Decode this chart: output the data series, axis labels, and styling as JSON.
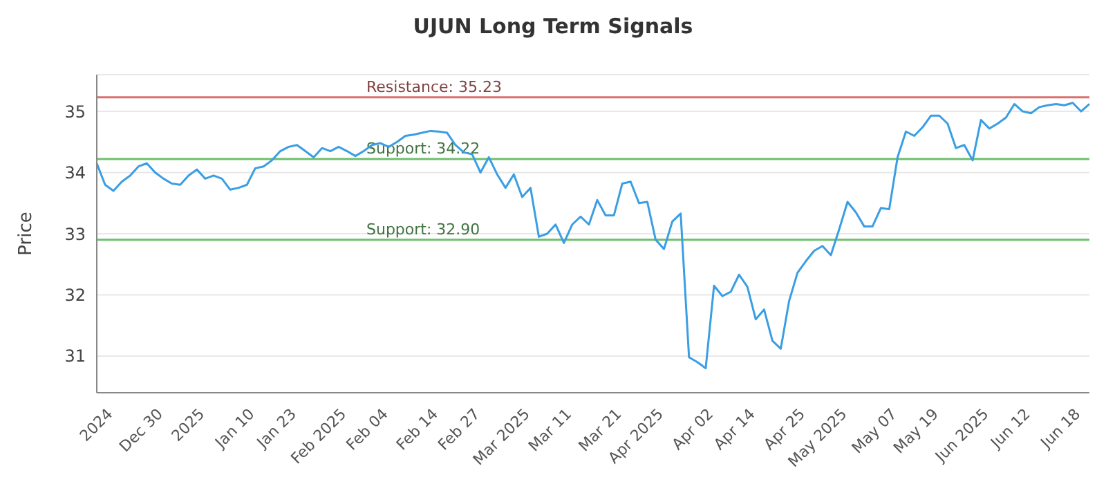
{
  "chart_data": {
    "type": "line",
    "title": "UJUN Long Term Signals",
    "ylabel": "Price",
    "categories": [
      null,
      null,
      "2024",
      null,
      null,
      null,
      null,
      null,
      "Dec 30",
      null,
      null,
      null,
      null,
      "2025",
      null,
      null,
      null,
      null,
      null,
      "Jan 10",
      null,
      null,
      null,
      null,
      "Jan 23",
      null,
      null,
      null,
      null,
      null,
      "Feb 2025",
      null,
      null,
      null,
      null,
      "Feb 04",
      null,
      null,
      null,
      null,
      null,
      "Feb 14",
      null,
      null,
      null,
      null,
      "Feb 27",
      null,
      null,
      null,
      null,
      null,
      "Mar 2025",
      null,
      null,
      null,
      null,
      "Mar 11",
      null,
      null,
      null,
      null,
      null,
      "Mar 21",
      null,
      null,
      null,
      null,
      "Apr 2025",
      null,
      null,
      null,
      null,
      null,
      "Apr 02",
      null,
      null,
      null,
      null,
      "Apr 14",
      null,
      null,
      null,
      null,
      null,
      "Apr 25",
      null,
      null,
      null,
      null,
      "May 2025",
      null,
      null,
      null,
      null,
      null,
      "May 07",
      null,
      null,
      null,
      null,
      "May 19",
      null,
      null,
      null,
      null,
      null,
      "Jun 2025",
      null,
      null,
      null,
      null,
      "Jun 12",
      null,
      null,
      null,
      null,
      null,
      "Jun 18",
      null
    ],
    "series": [
      {
        "color": "#3a9ee4",
        "values": [
          34.15,
          33.8,
          33.7,
          33.85,
          33.95,
          34.1,
          34.15,
          34.0,
          33.9,
          33.82,
          33.8,
          33.95,
          34.05,
          33.9,
          33.95,
          33.9,
          33.72,
          33.75,
          33.8,
          34.07,
          34.1,
          34.2,
          34.35,
          34.42,
          34.45,
          34.35,
          34.25,
          34.4,
          34.35,
          34.42,
          34.35,
          34.27,
          34.35,
          34.45,
          34.48,
          34.42,
          34.5,
          34.6,
          34.62,
          34.65,
          34.68,
          34.67,
          34.65,
          34.45,
          34.33,
          34.3,
          34.0,
          34.25,
          33.97,
          33.75,
          33.97,
          33.6,
          33.75,
          32.95,
          33.0,
          33.15,
          32.85,
          33.15,
          33.28,
          33.15,
          33.55,
          33.3,
          33.3,
          33.82,
          33.85,
          33.5,
          33.52,
          32.9,
          32.75,
          33.2,
          33.33,
          30.98,
          30.9,
          30.8,
          32.15,
          31.98,
          32.05,
          32.33,
          32.13,
          31.6,
          31.76,
          31.25,
          31.12,
          31.9,
          32.36,
          32.55,
          32.72,
          32.8,
          32.65,
          33.07,
          33.52,
          33.35,
          33.12,
          33.12,
          33.42,
          33.4,
          34.25,
          34.67,
          34.6,
          34.74,
          34.93,
          34.93,
          34.8,
          34.4,
          34.45,
          34.2,
          34.86,
          34.72,
          34.8,
          34.9,
          35.12,
          35.0,
          34.97,
          35.07,
          35.1,
          35.12,
          35.1,
          35.14,
          35.0,
          35.12
        ]
      }
    ],
    "ylim": [
      30.4,
      35.6
    ],
    "yticks": [
      31,
      32,
      33,
      34,
      35
    ],
    "grid": "y",
    "marker": "none",
    "line_style": "solid",
    "ref_lines": [
      {
        "axis": "y",
        "value": 35.23,
        "label": "Resistance: 35.23",
        "color": "#d9706e"
      },
      {
        "axis": "y",
        "value": 34.22,
        "label": "Support: 34.22",
        "color": "#6cbf6c"
      },
      {
        "axis": "y",
        "value": 32.9,
        "label": "Support: 32.90",
        "color": "#6cbf6c"
      }
    ]
  }
}
